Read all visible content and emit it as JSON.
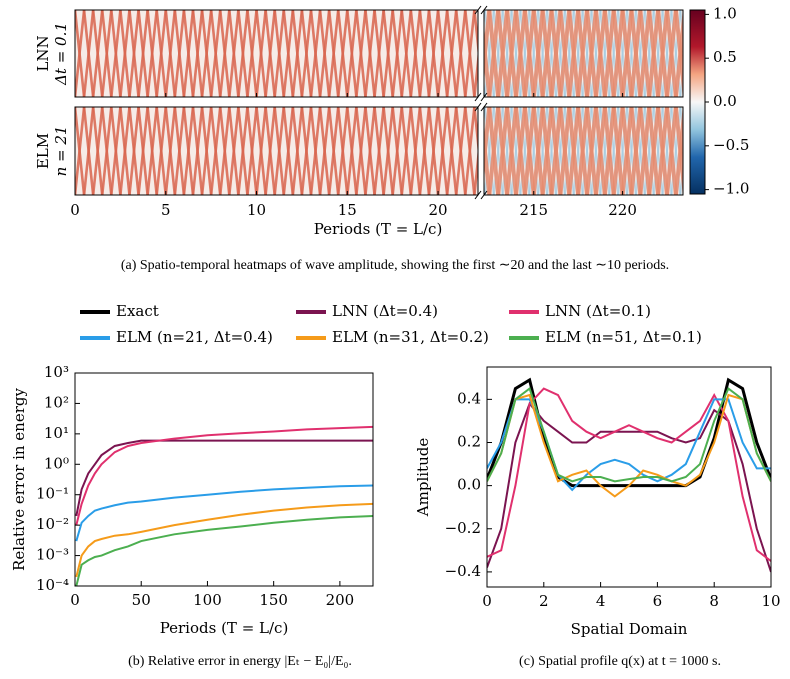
{
  "chart_data": [
    {
      "type": "heatmap",
      "rows": [
        {
          "label": "LNN",
          "sublabel": "Δt = 0.1"
        },
        {
          "label": "ELM",
          "sublabel": "n = 21"
        }
      ],
      "segments": [
        {
          "xlim": [
            0,
            22.2
          ],
          "xticks": [
            0,
            5,
            10,
            15,
            20
          ]
        },
        {
          "xlim": [
            212.2,
            223.4
          ],
          "xticks": [
            215,
            220
          ]
        }
      ],
      "xlabel": "Periods (T = L/c)",
      "clim": [
        -1.05,
        1.05
      ],
      "cticks": [
        {
          "value": 1,
          "label": "1.0"
        },
        {
          "value": 0.5,
          "label": "0.5"
        },
        {
          "value": 0,
          "label": "0.0"
        },
        {
          "value": -0.5,
          "label": "−0.5"
        },
        {
          "value": -1,
          "label": "−1.0"
        }
      ],
      "caption": "(a) Spatio-temporal heatmaps of wave amplitude, showing the first ∼20 and the last ∼10 periods."
    },
    {
      "type": "line",
      "log_y": true,
      "xlabel": "Periods (T = L/c)",
      "ylabel": "Relative error in energy",
      "xlim": [
        0,
        225
      ],
      "xticks": [
        0,
        50,
        100,
        150,
        200
      ],
      "ylim": [
        0.0001,
        1000
      ],
      "yticks": [
        {
          "value": 0.0001,
          "label": "10⁻⁴"
        },
        {
          "value": 0.001,
          "label": "10⁻³"
        },
        {
          "value": 0.01,
          "label": "10⁻²"
        },
        {
          "value": 0.1,
          "label": "10⁻¹"
        },
        {
          "value": 1,
          "label": "10⁰"
        },
        {
          "value": 10,
          "label": "10¹"
        },
        {
          "value": 100,
          "label": "10²"
        },
        {
          "value": 1000,
          "label": "10³"
        }
      ],
      "x": [
        1,
        5,
        10,
        15,
        20,
        30,
        40,
        50,
        75,
        100,
        125,
        150,
        175,
        200,
        225
      ],
      "series": [
        {
          "name": "LNN (Δt=0.4)",
          "color": "#7b1450",
          "values": [
            0.02,
            0.15,
            0.5,
            1,
            2,
            4,
            5,
            6,
            6,
            6,
            6,
            6,
            6,
            6,
            6
          ]
        },
        {
          "name": "LNN (Δt=0.1)",
          "color": "#e0306e",
          "values": [
            0.01,
            0.05,
            0.2,
            0.5,
            1,
            2.5,
            4,
            5,
            7,
            9,
            10.5,
            12,
            14,
            15.5,
            17
          ]
        },
        {
          "name": "ELM (n=21, Δt=0.4)",
          "color": "#2a9de8",
          "values": [
            0.003,
            0.012,
            0.02,
            0.03,
            0.035,
            0.045,
            0.055,
            0.06,
            0.08,
            0.1,
            0.125,
            0.15,
            0.17,
            0.19,
            0.2
          ]
        },
        {
          "name": "ELM (n=31, Δt=0.2)",
          "color": "#f59b1a",
          "values": [
            0.0002,
            0.001,
            0.002,
            0.003,
            0.0035,
            0.0045,
            0.005,
            0.006,
            0.01,
            0.015,
            0.022,
            0.03,
            0.038,
            0.045,
            0.05
          ]
        },
        {
          "name": "ELM (n=51, Δt=0.1)",
          "color": "#4caf50",
          "values": [
            0.0001,
            0.0005,
            0.0007,
            0.0009,
            0.001,
            0.0015,
            0.002,
            0.003,
            0.005,
            0.007,
            0.009,
            0.012,
            0.015,
            0.018,
            0.02
          ]
        }
      ],
      "caption": "(b) Relative error in energy |Eₜ − E₀|/E₀."
    },
    {
      "type": "line",
      "xlabel": "Spatial Domain",
      "ylabel": "Amplitude",
      "xlim": [
        0,
        10
      ],
      "xticks": [
        0,
        2,
        4,
        6,
        8,
        10
      ],
      "ylim": [
        -0.47,
        0.55
      ],
      "yticks": [
        {
          "value": -0.4,
          "label": "−0.4"
        },
        {
          "value": -0.2,
          "label": "−0.2"
        },
        {
          "value": 0,
          "label": "0.0"
        },
        0.2,
        0.4
      ],
      "x": [
        0,
        0.5,
        1,
        1.5,
        2,
        2.5,
        3,
        3.5,
        4,
        4.5,
        5,
        5.5,
        6,
        6.5,
        7,
        7.5,
        8,
        8.5,
        9,
        9.5,
        10
      ],
      "series": [
        {
          "name": "Exact",
          "color": "#000000",
          "values": [
            0.03,
            0.2,
            0.45,
            0.49,
            0.22,
            0.04,
            0,
            0,
            0,
            0,
            0,
            0,
            0,
            0,
            0,
            0.04,
            0.22,
            0.49,
            0.45,
            0.2,
            0.03
          ]
        },
        {
          "name": "LNN (Δt=0.4)",
          "color": "#7b1450",
          "values": [
            -0.38,
            -0.2,
            0.2,
            0.38,
            0.3,
            0.25,
            0.2,
            0.2,
            0.25,
            0.25,
            0.25,
            0.25,
            0.25,
            0.22,
            0.2,
            0.22,
            0.35,
            0.3,
            0.1,
            -0.2,
            -0.4
          ]
        },
        {
          "name": "LNN (Δt=0.1)",
          "color": "#e0306e",
          "values": [
            -0.33,
            -0.3,
            0,
            0.38,
            0.45,
            0.42,
            0.3,
            0.25,
            0.22,
            0.25,
            0.28,
            0.25,
            0.22,
            0.2,
            0.25,
            0.3,
            0.42,
            0.3,
            -0.05,
            -0.3,
            -0.35
          ]
        },
        {
          "name": "ELM (n=21, Δt=0.4)",
          "color": "#2a9de8",
          "values": [
            0.08,
            0.2,
            0.4,
            0.4,
            0.25,
            0.05,
            -0.02,
            0.05,
            0.1,
            0.12,
            0.1,
            0.05,
            0.02,
            0.05,
            0.1,
            0.25,
            0.4,
            0.4,
            0.2,
            0.08,
            0.08
          ]
        },
        {
          "name": "ELM (n=31, Δt=0.2)",
          "color": "#f59b1a",
          "values": [
            0.02,
            0.15,
            0.4,
            0.42,
            0.2,
            0.02,
            0.05,
            0.07,
            0,
            -0.05,
            0,
            0.07,
            0.05,
            0.02,
            0,
            0.05,
            0.2,
            0.42,
            0.4,
            0.15,
            0.02
          ]
        },
        {
          "name": "ELM (n=51, Δt=0.1)",
          "color": "#4caf50",
          "values": [
            0.02,
            0.15,
            0.4,
            0.45,
            0.25,
            0.05,
            0.02,
            0.04,
            0.04,
            0.02,
            0.03,
            0.04,
            0.04,
            0.02,
            0.04,
            0.1,
            0.3,
            0.45,
            0.4,
            0.15,
            0.02
          ]
        }
      ],
      "caption": "(c) Spatial profile q(x) at t = 1000 s."
    }
  ]
}
